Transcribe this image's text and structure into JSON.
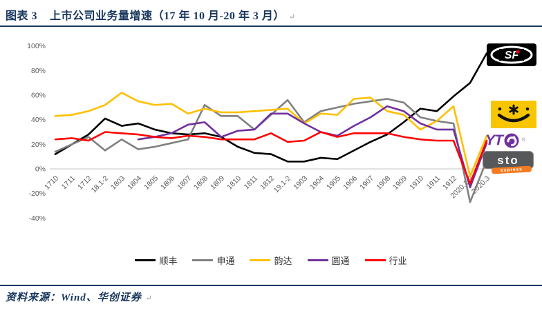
{
  "header": {
    "figure_label": "图表 3",
    "title": "上市公司业务量增速（17 年 10 月-20 年 3 月）",
    "return_mark": "↵"
  },
  "footer": {
    "source": "资料来源：Wind、华创证券",
    "return_mark": "↵"
  },
  "colors": {
    "navy": "#17365D",
    "axis_label": "#595959",
    "zero_line": "#D9D9D9",
    "sf_black": "#000000",
    "sto_gray": "#808080",
    "yunda_yellow": "#FFC000",
    "yto_purple": "#7030A0",
    "industry_red": "#FF0000"
  },
  "logos": {
    "sf": {
      "text": "SF"
    },
    "yunda": {
      "text": ""
    },
    "yto": {
      "text": "YT",
      "reg": "®"
    },
    "sto": {
      "text": "sto",
      "sub": "express"
    }
  },
  "chart_data": {
    "type": "line",
    "title": "上市公司业务量增速（17 年 10 月-20 年 3 月）",
    "xlabel": "",
    "ylabel": "",
    "ylim": [
      -40,
      100
    ],
    "y_ticks": [
      100,
      80,
      60,
      40,
      20,
      0,
      -20,
      -40
    ],
    "y_tick_suffix": "%",
    "grid": false,
    "legend_position": "bottom",
    "categories": [
      "1710",
      "1711",
      "1712",
      "18.1-2",
      "1803",
      "1804",
      "1805",
      "1806",
      "1807",
      "1808",
      "1809",
      "1810",
      "1811",
      "1812",
      "19.1-2",
      "1903",
      "1904",
      "1905",
      "1906",
      "1907",
      "1908",
      "1909",
      "1910",
      "1911",
      "1912",
      "2020.1-2",
      "2020.3"
    ],
    "series": [
      {
        "name": "顺丰",
        "color": "#000000",
        "values": [
          12,
          20,
          28,
          41,
          35,
          37,
          32,
          29,
          28,
          29,
          26,
          18,
          13,
          12,
          6,
          6,
          9,
          8,
          15,
          22,
          28,
          38,
          49,
          47,
          59,
          70,
          94
        ]
      },
      {
        "name": "申通",
        "color": "#808080",
        "values": [
          14,
          20,
          26,
          15,
          24,
          16,
          18,
          21,
          24,
          52,
          43,
          43,
          32,
          44,
          56,
          38,
          47,
          50,
          53,
          55,
          57,
          54,
          42,
          39,
          37,
          -27,
          7
        ]
      },
      {
        "name": "韵达",
        "color": "#FFC000",
        "values": [
          43,
          44,
          47,
          52,
          62,
          55,
          52,
          53,
          45,
          49,
          46,
          46,
          47,
          48,
          49,
          37,
          45,
          44,
          57,
          58,
          47,
          44,
          32,
          39,
          51,
          -6,
          27
        ]
      },
      {
        "name": "圆通",
        "color": "#7030A0",
        "values": [
          null,
          null,
          null,
          null,
          null,
          24,
          26,
          29,
          36,
          38,
          26,
          31,
          32,
          45,
          45,
          37,
          30,
          27,
          35,
          42,
          51,
          47,
          37,
          32,
          32,
          -15,
          21
        ]
      },
      {
        "name": "行业",
        "color": "#FF0000",
        "values": [
          24,
          25,
          23,
          30,
          29,
          28,
          26,
          25,
          27,
          26,
          24,
          24,
          24,
          29,
          22,
          23,
          30,
          26,
          29,
          29,
          29,
          26,
          24,
          23,
          23,
          -12,
          23
        ]
      }
    ]
  }
}
